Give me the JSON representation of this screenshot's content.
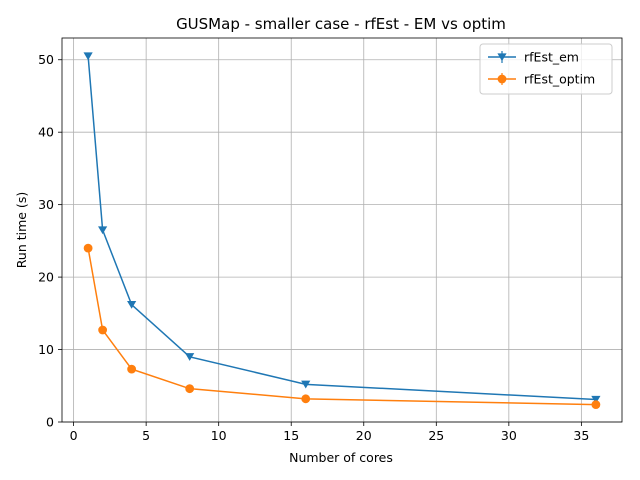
{
  "chart_data": {
    "type": "line",
    "title": "GUSMap - smaller case - rfEst - EM vs optim",
    "xlabel": "Number of cores",
    "ylabel": "Run time (s)",
    "xlim": [
      -0.8,
      37.8
    ],
    "ylim": [
      0,
      53
    ],
    "xticks": [
      0,
      5,
      10,
      15,
      20,
      25,
      30,
      35
    ],
    "yticks": [
      0,
      10,
      20,
      30,
      40,
      50
    ],
    "grid": true,
    "legend_position": "top-right",
    "x": [
      1,
      2,
      4,
      8,
      16,
      36
    ],
    "series": [
      {
        "name": "rfEst_em",
        "values": [
          50.5,
          26.5,
          16.2,
          9.0,
          5.2,
          3.1
        ],
        "color": "#1f77b4",
        "marker": "triangle-down"
      },
      {
        "name": "rfEst_optim",
        "values": [
          24.0,
          12.7,
          7.3,
          4.6,
          3.2,
          2.4
        ],
        "color": "#ff7f0e",
        "marker": "circle"
      }
    ]
  }
}
